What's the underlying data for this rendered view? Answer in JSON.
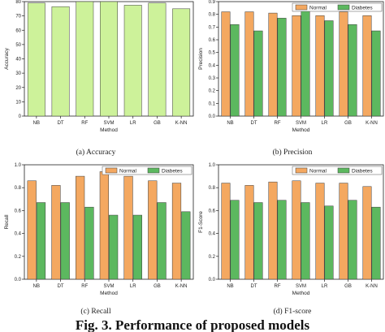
{
  "figure_title": "Fig. 3. Performance of proposed models",
  "colors": {
    "single": "#cdf29a",
    "normal": "#f4a860",
    "diabetes": "#5cb85f",
    "edge": "#3a3a3a"
  },
  "chart_data": [
    {
      "type": "bar",
      "caption": "(a) Accuracy",
      "categories": [
        "NB",
        "DT",
        "RF",
        "SVM",
        "LR",
        "GB",
        "K-NN"
      ],
      "values": [
        79,
        76.5,
        80,
        80,
        77.5,
        79,
        75
      ],
      "xlabel": "Method",
      "ylabel": "Accuracy",
      "ylim": [
        0,
        80
      ],
      "yticks": [
        0,
        10,
        20,
        30,
        40,
        50,
        60,
        70,
        80
      ],
      "ytick_labels": [
        "0",
        "10",
        "20",
        "30",
        "40",
        "50",
        "60",
        "70",
        "80"
      ]
    },
    {
      "type": "bar",
      "caption": "(b) Precision",
      "categories": [
        "NB",
        "DT",
        "RF",
        "SVM",
        "LR",
        "GB",
        "K-NN"
      ],
      "series": [
        {
          "name": "Normal",
          "values": [
            0.82,
            0.82,
            0.81,
            0.79,
            0.79,
            0.82,
            0.79
          ]
        },
        {
          "name": "Diabetes",
          "values": [
            0.72,
            0.67,
            0.77,
            0.83,
            0.75,
            0.72,
            0.67
          ]
        }
      ],
      "xlabel": "Method",
      "ylabel": "Precision",
      "ylim": [
        0,
        0.9
      ],
      "yticks": [
        0,
        0.1,
        0.2,
        0.3,
        0.4,
        0.5,
        0.6,
        0.7,
        0.8,
        0.9
      ],
      "ytick_labels": [
        "0.0",
        "0.1",
        "0.2",
        "0.3",
        "0.4",
        "0.5",
        "0.6",
        "0.7",
        "0.8",
        "0.9"
      ],
      "legend": "top-right"
    },
    {
      "type": "bar",
      "caption": "(c) Recall",
      "categories": [
        "NB",
        "DT",
        "RF",
        "SVM",
        "LR",
        "GB",
        "K-NN"
      ],
      "series": [
        {
          "name": "Normal",
          "values": [
            0.86,
            0.82,
            0.9,
            0.94,
            0.9,
            0.86,
            0.84
          ]
        },
        {
          "name": "Diabetes",
          "values": [
            0.67,
            0.67,
            0.63,
            0.56,
            0.56,
            0.67,
            0.59
          ]
        }
      ],
      "xlabel": "Method",
      "ylabel": "Recall",
      "ylim": [
        0,
        1.0
      ],
      "yticks": [
        0,
        0.2,
        0.4,
        0.6,
        0.8,
        1.0
      ],
      "ytick_labels": [
        "0.0",
        "0.2",
        "0.4",
        "0.6",
        "0.8",
        "1.0"
      ],
      "legend": "top-right"
    },
    {
      "type": "bar",
      "caption": "(d) F1-score",
      "categories": [
        "NB",
        "DT",
        "RF",
        "SVM",
        "LR",
        "GB",
        "K-NN"
      ],
      "series": [
        {
          "name": "Normal",
          "values": [
            0.84,
            0.82,
            0.85,
            0.86,
            0.84,
            0.84,
            0.81
          ]
        },
        {
          "name": "Diabetes",
          "values": [
            0.69,
            0.67,
            0.69,
            0.67,
            0.64,
            0.69,
            0.63
          ]
        }
      ],
      "xlabel": "Method",
      "ylabel": "F1-Score",
      "ylim": [
        0,
        1.0
      ],
      "yticks": [
        0,
        0.2,
        0.4,
        0.6,
        0.8,
        1.0
      ],
      "ytick_labels": [
        "0.0",
        "0.2",
        "0.4",
        "0.6",
        "0.8",
        "1.0"
      ],
      "legend": "top-right"
    }
  ]
}
